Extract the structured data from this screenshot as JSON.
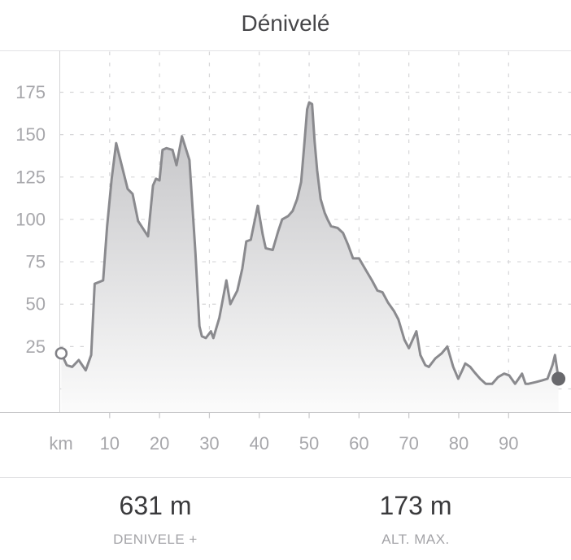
{
  "page": {
    "title": "Dénivelé"
  },
  "chart_data": {
    "type": "area",
    "title": "Dénivelé",
    "x_unit_label": "km",
    "x_ticks": [
      10,
      20,
      30,
      40,
      50,
      60,
      70,
      80,
      90
    ],
    "x_range_km": [
      0,
      102.5
    ],
    "y_ticks": [
      25,
      50,
      75,
      100,
      125,
      150,
      175
    ],
    "y_gridlines": [
      0,
      25,
      50,
      75,
      100,
      125,
      150,
      175
    ],
    "y_range_m": [
      -14,
      200
    ],
    "grid": "dashed",
    "legend": "none",
    "series": [
      {
        "name": "elevation-profile",
        "unit": "m",
        "points_km_m": [
          [
            0.3,
            21
          ],
          [
            1.4,
            14
          ],
          [
            2.5,
            13
          ],
          [
            3.8,
            17
          ],
          [
            5.2,
            11
          ],
          [
            6.3,
            20
          ],
          [
            7.0,
            62
          ],
          [
            8.7,
            64
          ],
          [
            9.5,
            96
          ],
          [
            10.4,
            124
          ],
          [
            11.3,
            145
          ],
          [
            12.5,
            131
          ],
          [
            13.6,
            118
          ],
          [
            14.6,
            115
          ],
          [
            15.7,
            99
          ],
          [
            16.6,
            95
          ],
          [
            17.7,
            90
          ],
          [
            18.7,
            120
          ],
          [
            19.3,
            124
          ],
          [
            20.0,
            123
          ],
          [
            20.6,
            141
          ],
          [
            21.4,
            142
          ],
          [
            22.6,
            141
          ],
          [
            23.4,
            132
          ],
          [
            24.5,
            149
          ],
          [
            26.0,
            135
          ],
          [
            27.2,
            80
          ],
          [
            28.0,
            37
          ],
          [
            28.5,
            31
          ],
          [
            29.3,
            30
          ],
          [
            30.3,
            34
          ],
          [
            30.8,
            30
          ],
          [
            32.0,
            42
          ],
          [
            33.4,
            64
          ],
          [
            34.2,
            50
          ],
          [
            35.6,
            58
          ],
          [
            36.6,
            71
          ],
          [
            37.4,
            87
          ],
          [
            38.3,
            88
          ],
          [
            39.7,
            108
          ],
          [
            40.7,
            91
          ],
          [
            41.3,
            83
          ],
          [
            42.7,
            82
          ],
          [
            43.8,
            93
          ],
          [
            44.6,
            100
          ],
          [
            45.8,
            102
          ],
          [
            46.7,
            105
          ],
          [
            47.6,
            112
          ],
          [
            48.4,
            122
          ],
          [
            49.0,
            143
          ],
          [
            49.6,
            165
          ],
          [
            50.0,
            169
          ],
          [
            50.6,
            168
          ],
          [
            51.1,
            146
          ],
          [
            51.6,
            129
          ],
          [
            52.3,
            112
          ],
          [
            53.1,
            104
          ],
          [
            53.7,
            100
          ],
          [
            54.4,
            96
          ],
          [
            55.7,
            95
          ],
          [
            56.8,
            92
          ],
          [
            57.8,
            85
          ],
          [
            58.8,
            77
          ],
          [
            60.0,
            77
          ],
          [
            61.4,
            70
          ],
          [
            62.6,
            64
          ],
          [
            63.7,
            58
          ],
          [
            64.7,
            57
          ],
          [
            65.8,
            51
          ],
          [
            67.0,
            46
          ],
          [
            67.9,
            41
          ],
          [
            69.1,
            29
          ],
          [
            70.0,
            24
          ],
          [
            71.5,
            34
          ],
          [
            72.3,
            20
          ],
          [
            73.3,
            14
          ],
          [
            74.0,
            13
          ],
          [
            75.3,
            18
          ],
          [
            76.6,
            21
          ],
          [
            77.7,
            25
          ],
          [
            78.9,
            13
          ],
          [
            79.9,
            6
          ],
          [
            80.7,
            11
          ],
          [
            81.3,
            15
          ],
          [
            82.3,
            13
          ],
          [
            83.1,
            10
          ],
          [
            84.3,
            6
          ],
          [
            85.4,
            3
          ],
          [
            86.7,
            3
          ],
          [
            87.9,
            7
          ],
          [
            89.1,
            9
          ],
          [
            90.1,
            8
          ],
          [
            91.3,
            3
          ],
          [
            92.0,
            6
          ],
          [
            92.7,
            9
          ],
          [
            93.4,
            3
          ],
          [
            94.0,
            3
          ],
          [
            95.4,
            4
          ],
          [
            96.7,
            5
          ],
          [
            97.8,
            6
          ],
          [
            98.8,
            14
          ],
          [
            99.3,
            20
          ],
          [
            100.0,
            6
          ]
        ]
      }
    ],
    "start_marker": {
      "km": 0.3,
      "alt_m": 21,
      "style": "open-circle"
    },
    "end_marker": {
      "km": 100.0,
      "alt_m": 6,
      "style": "filled-circle"
    }
  },
  "stats": {
    "left": {
      "value": "631 m",
      "label": "DENIVELE +"
    },
    "right": {
      "value": "173 m",
      "label": "ALT. MAX."
    }
  },
  "colors": {
    "line": "#8a8a8e",
    "fill_top": "#bfbfc2",
    "fill_bottom": "#fbfbfb",
    "grid": "#d6d6d8",
    "axis_left": "#d4d4d6",
    "axis_bottom": "#c8c8ca",
    "top_border": "#e3e3e5",
    "tick_mark": "#c9c9cb",
    "tick_text": "#a7a7ab",
    "title_text": "#464649",
    "stat_value_text": "#3a3a3c",
    "stat_label_text": "#a3a3a7",
    "marker_end_fill": "#68686c",
    "marker_start_stroke": "#808085",
    "marker_start_fill": "#ffffff"
  }
}
